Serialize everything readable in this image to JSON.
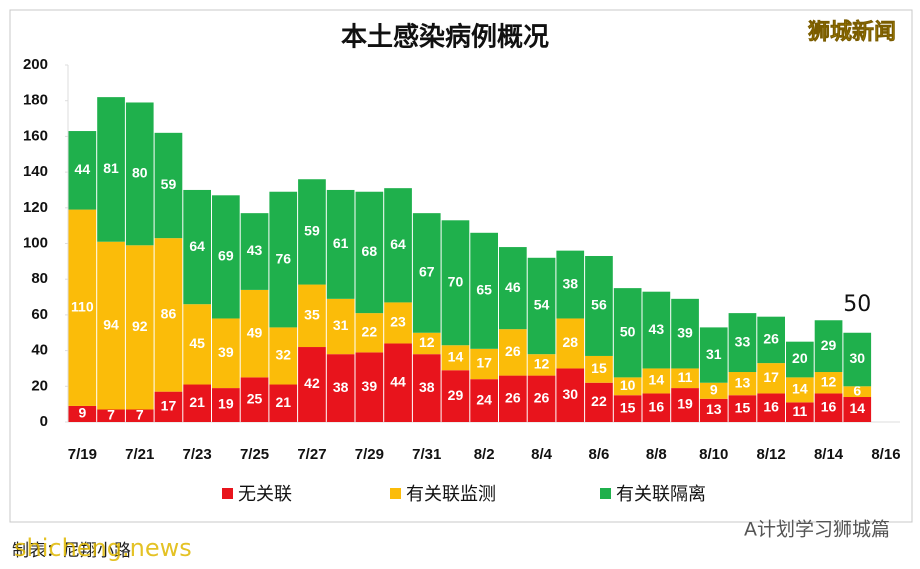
{
  "chart_data": {
    "type": "stacked_bar",
    "title": "本土感染病例概况",
    "watermark": "狮城新闻",
    "categories": [
      "7/19",
      null,
      "7/21",
      null,
      "7/23",
      null,
      "7/25",
      null,
      "7/27",
      null,
      "7/29",
      null,
      "7/31",
      null,
      "8/2",
      null,
      "8/4",
      null,
      "8/6",
      null,
      "8/8",
      null,
      "8/10",
      null,
      "8/12",
      null,
      "8/14",
      null,
      "8/16"
    ],
    "series": [
      {
        "name": "无关联",
        "color": "#e8141c",
        "values": [
          9,
          7,
          7,
          17,
          21,
          19,
          25,
          21,
          42,
          38,
          39,
          44,
          38,
          29,
          24,
          26,
          26,
          30,
          22,
          15,
          16,
          19,
          13,
          15,
          16,
          11,
          16,
          14,
          null
        ]
      },
      {
        "name": "有关联监测",
        "color": "#fbbc09",
        "values": [
          110,
          94,
          92,
          86,
          45,
          39,
          49,
          32,
          35,
          31,
          22,
          23,
          12,
          14,
          17,
          26,
          12,
          28,
          15,
          10,
          14,
          11,
          9,
          13,
          17,
          14,
          12,
          6,
          null
        ]
      },
      {
        "name": "有关联隔离",
        "color": "#1fb04c",
        "values": [
          44,
          81,
          80,
          59,
          64,
          69,
          43,
          76,
          59,
          61,
          68,
          64,
          67,
          70,
          65,
          46,
          54,
          38,
          56,
          50,
          43,
          39,
          31,
          33,
          26,
          20,
          29,
          30,
          null
        ]
      }
    ],
    "annotation": "50",
    "ylim": [
      0,
      200
    ],
    "yticks": [
      0,
      20,
      40,
      60,
      80,
      100,
      120,
      140,
      160,
      180,
      200
    ],
    "grid": false,
    "legend": "bottom",
    "footer_left": "制表：尼翔小路",
    "footer_site": "shicheng.news",
    "footer_right": "A计划学习狮城篇"
  }
}
